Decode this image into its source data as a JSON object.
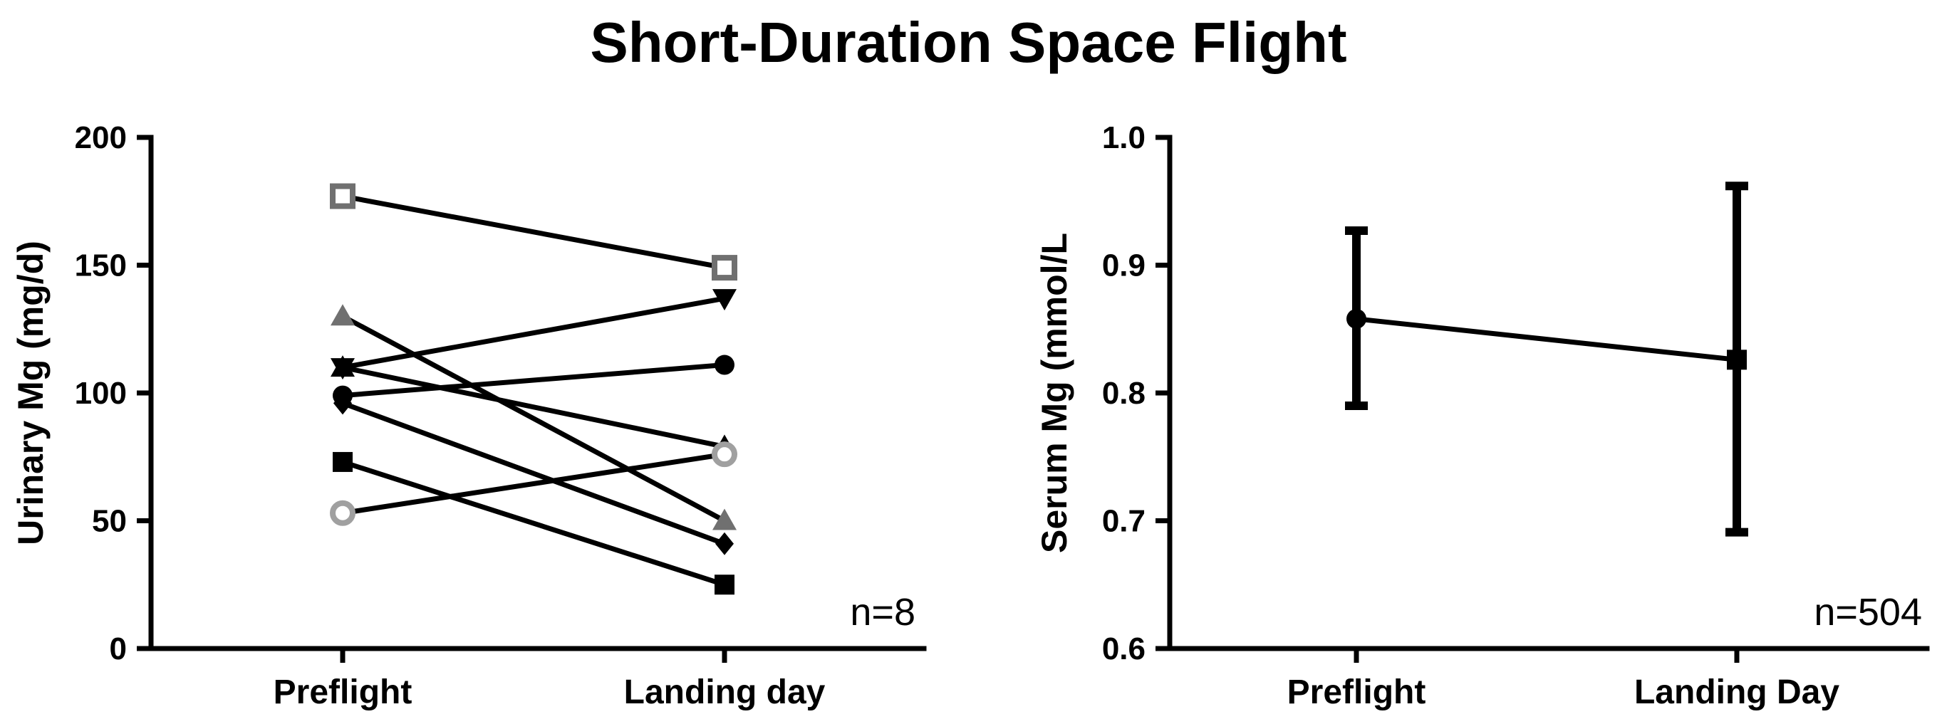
{
  "title": "Short-Duration Space Flight",
  "chart_data": [
    {
      "type": "line",
      "categories": [
        "Preflight",
        "Landing day"
      ],
      "ylabel": "Urinary Mg (mg/d)",
      "xlabel": "",
      "ylim": [
        0,
        200
      ],
      "yticks": [
        "0",
        "50",
        "100",
        "150",
        "200"
      ],
      "annotation": "n=8",
      "grid": false,
      "series": [
        {
          "values": [
            177,
            149
          ],
          "marker": "open-square",
          "color": "#707070"
        },
        {
          "values": [
            130,
            50
          ],
          "marker": "triangle-up",
          "color": "#707070"
        },
        {
          "values": [
            110,
            137
          ],
          "marker": "triangle-down",
          "color": "#000000"
        },
        {
          "values": [
            110,
            79
          ],
          "marker": "triangle-up",
          "color": "#000000"
        },
        {
          "values": [
            99,
            111
          ],
          "marker": "circle",
          "color": "#000000"
        },
        {
          "values": [
            96,
            41
          ],
          "marker": "diamond",
          "color": "#000000"
        },
        {
          "values": [
            73,
            25
          ],
          "marker": "square",
          "color": "#000000"
        },
        {
          "values": [
            53,
            76
          ],
          "marker": "open-circle",
          "color": "#a0a0a0"
        }
      ]
    },
    {
      "type": "line",
      "categories": [
        "Preflight",
        "Landing Day"
      ],
      "ylabel": "Serum Mg (mmol/L",
      "xlabel": "",
      "ylim": [
        0.6,
        1.0
      ],
      "yticks": [
        "0.6",
        "0.7",
        "0.8",
        "0.9",
        "1.0"
      ],
      "annotation": "n=504",
      "grid": false,
      "series": [
        {
          "values": [
            0.858,
            0.826
          ],
          "error_low": [
            0.79,
            0.691
          ],
          "error_high": [
            0.927,
            0.962
          ],
          "markers": [
            "circle",
            "square"
          ],
          "color": "#000000"
        }
      ]
    }
  ]
}
